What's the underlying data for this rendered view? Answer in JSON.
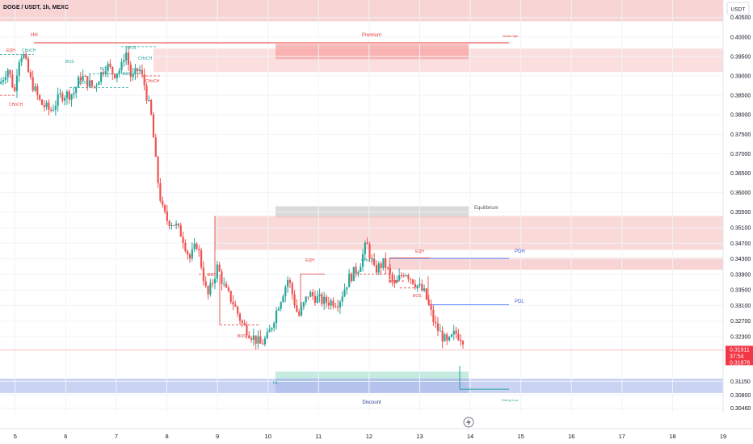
{
  "header": {
    "symbol": "DOGE / USDT, 1h, MEXC"
  },
  "axis": {
    "currency": "USDT"
  },
  "price": {
    "current": "0.31911",
    "countdown": "37:54",
    "secondary": "0.31876"
  },
  "colors": {
    "up": "#26a69a",
    "down": "#ef5350",
    "premium_zone": "#f5c6c6",
    "discount_zone": "#b9c4f0",
    "equilibrium_zone": "#d6d6d6",
    "ob_zone": "#f8c9c9",
    "label_red": "#e53935",
    "label_teal": "#26a69a",
    "label_blue": "#3b5bdb",
    "axis_text": "#131722",
    "price_tag": "#f23645"
  },
  "annotations": {
    "hh": "HH",
    "premium": "Premium",
    "weak_high": "Weak High",
    "equilibrium": "Equilibrium",
    "pdh": "PDH",
    "pdl": "PDL",
    "discount": "Discount",
    "strong_low": "Strong Low",
    "hl": "HL",
    "eqh1": "EQH",
    "eqh2": "EQH",
    "eqh3": "EQH",
    "choch1": "CHoCH",
    "choch2": "CHoCH",
    "choch3": "CHoCH",
    "choch4": "CHoCH",
    "choch5": "CHoCH",
    "bos1": "BOS",
    "bos2": "BOS",
    "bos3": "BOS",
    "bos4": "BOS",
    "bos5": "BOS",
    "bos6": "BOS",
    "bos7": "BOS",
    "bos8": "BOS"
  },
  "chart_data": {
    "type": "candlestick",
    "title": "DOGE / USDT, 1h, MEXC",
    "ylim": [
      0.3035,
      0.4095
    ],
    "x_range": [
      4.7,
      19.0
    ],
    "x_ticks": [
      "5",
      "6",
      "7",
      "8",
      "9",
      "10",
      "11",
      "12",
      "13",
      "14",
      "15",
      "16",
      "17",
      "18",
      "19"
    ],
    "y_ticks": [
      "0.40500",
      "0.40000",
      "0.39500",
      "0.39000",
      "0.38500",
      "0.38000",
      "0.37500",
      "0.37000",
      "0.36500",
      "0.36000",
      "0.35500",
      "0.35100",
      "0.34700",
      "0.34300",
      "0.33900",
      "0.33500",
      "0.33100",
      "0.32700",
      "0.32300",
      "0.31150",
      "0.30800",
      "0.30460"
    ],
    "waypoints": [
      [
        4.7,
        0.388
      ],
      [
        4.85,
        0.392
      ],
      [
        5.0,
        0.3855
      ],
      [
        5.05,
        0.394
      ],
      [
        5.15,
        0.396
      ],
      [
        5.3,
        0.389
      ],
      [
        5.5,
        0.383
      ],
      [
        5.7,
        0.381
      ],
      [
        5.9,
        0.385
      ],
      [
        6.15,
        0.3855
      ],
      [
        6.3,
        0.39
      ],
      [
        6.55,
        0.387
      ],
      [
        6.8,
        0.393
      ],
      [
        6.95,
        0.3905
      ],
      [
        7.1,
        0.392
      ],
      [
        7.18,
        0.397
      ],
      [
        7.3,
        0.389
      ],
      [
        7.45,
        0.392
      ],
      [
        7.55,
        0.388
      ],
      [
        7.7,
        0.379
      ],
      [
        7.8,
        0.365
      ],
      [
        7.9,
        0.356
      ],
      [
        8.0,
        0.353
      ],
      [
        8.15,
        0.352
      ],
      [
        8.3,
        0.349
      ],
      [
        8.45,
        0.343
      ],
      [
        8.6,
        0.347
      ],
      [
        8.8,
        0.333
      ],
      [
        9.0,
        0.341
      ],
      [
        9.15,
        0.335
      ],
      [
        9.3,
        0.332
      ],
      [
        9.5,
        0.326
      ],
      [
        9.7,
        0.323
      ],
      [
        9.85,
        0.321
      ],
      [
        10.0,
        0.323
      ],
      [
        10.2,
        0.331
      ],
      [
        10.4,
        0.338
      ],
      [
        10.6,
        0.328
      ],
      [
        10.8,
        0.334
      ],
      [
        11.1,
        0.332
      ],
      [
        11.4,
        0.332
      ],
      [
        11.6,
        0.338
      ],
      [
        11.8,
        0.341
      ],
      [
        11.95,
        0.347
      ],
      [
        12.1,
        0.34
      ],
      [
        12.3,
        0.342
      ],
      [
        12.5,
        0.336
      ],
      [
        12.7,
        0.34
      ],
      [
        12.9,
        0.337
      ],
      [
        13.1,
        0.334
      ],
      [
        13.3,
        0.326
      ],
      [
        13.55,
        0.321
      ],
      [
        13.7,
        0.324
      ],
      [
        13.85,
        0.3225
      ]
    ],
    "equal_levels": [
      "EQH"
    ],
    "structure_labels": [
      "HH",
      "HL",
      "BOS",
      "CHoCH",
      "EQH"
    ],
    "levels": [
      {
        "name": "Weak High",
        "price": 0.3985
      },
      {
        "name": "PDH",
        "price": 0.3431
      },
      {
        "name": "PDL",
        "price": 0.3312
      },
      {
        "name": "Strong Low",
        "price": 0.3095
      }
    ],
    "zones": [
      {
        "name": "Premium",
        "from": 0.404,
        "to": 0.4095
      },
      {
        "name": "Equilibrium",
        "from": 0.3535,
        "to": 0.3565
      },
      {
        "name": "Discount",
        "from": 0.3085,
        "to": 0.3122
      }
    ]
  }
}
